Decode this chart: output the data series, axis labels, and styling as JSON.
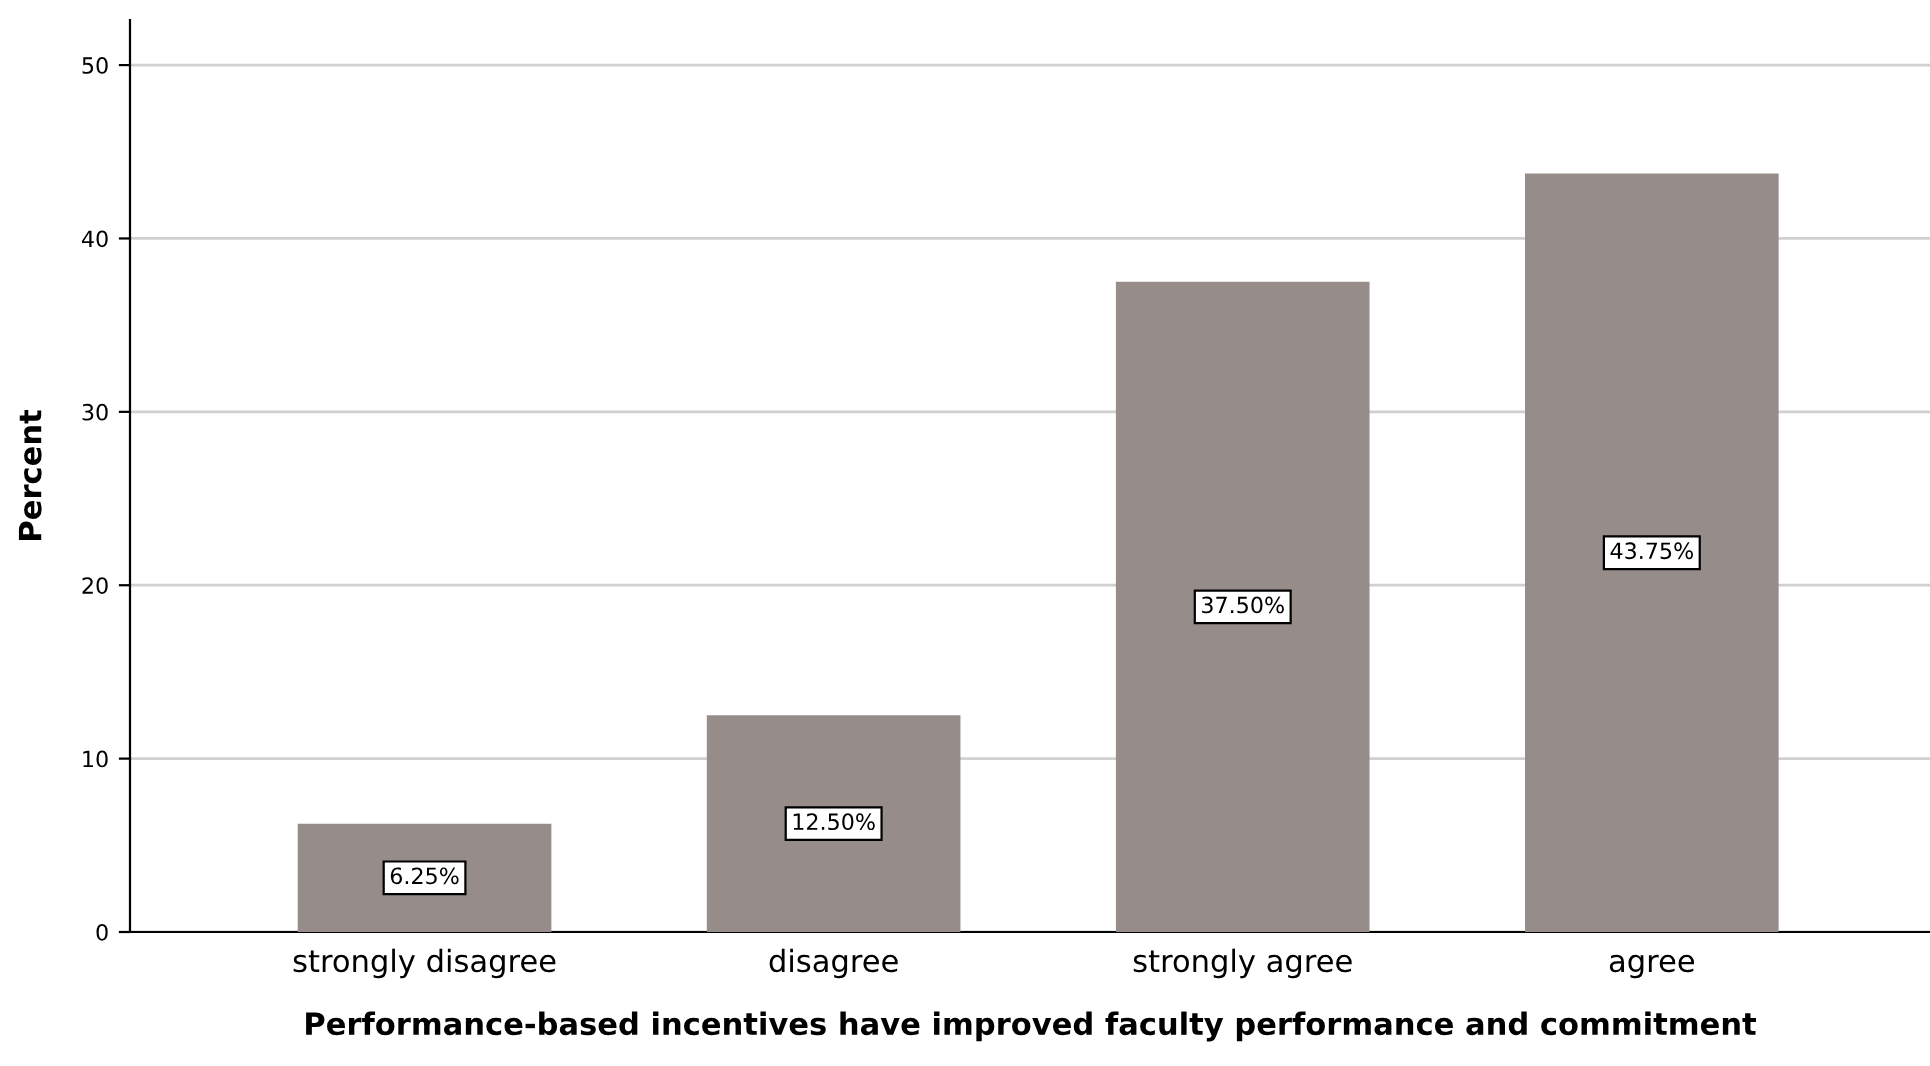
{
  "chart_data": {
    "type": "bar",
    "xlabel": "Performance-based incentives have improved faculty performance and commitment",
    "ylabel": "Percent",
    "categories": [
      "strongly disagree",
      "disagree",
      "strongly agree",
      "agree"
    ],
    "values": [
      6.25,
      12.5,
      37.5,
      43.75
    ],
    "value_labels": [
      "6.25%",
      "12.50%",
      "37.50%",
      "43.75%"
    ],
    "color": "#968d8b",
    "ylim": [
      0,
      52.6
    ],
    "yticks": [
      0,
      10,
      20,
      30,
      40,
      50
    ],
    "grid": "y",
    "legend": false
  }
}
